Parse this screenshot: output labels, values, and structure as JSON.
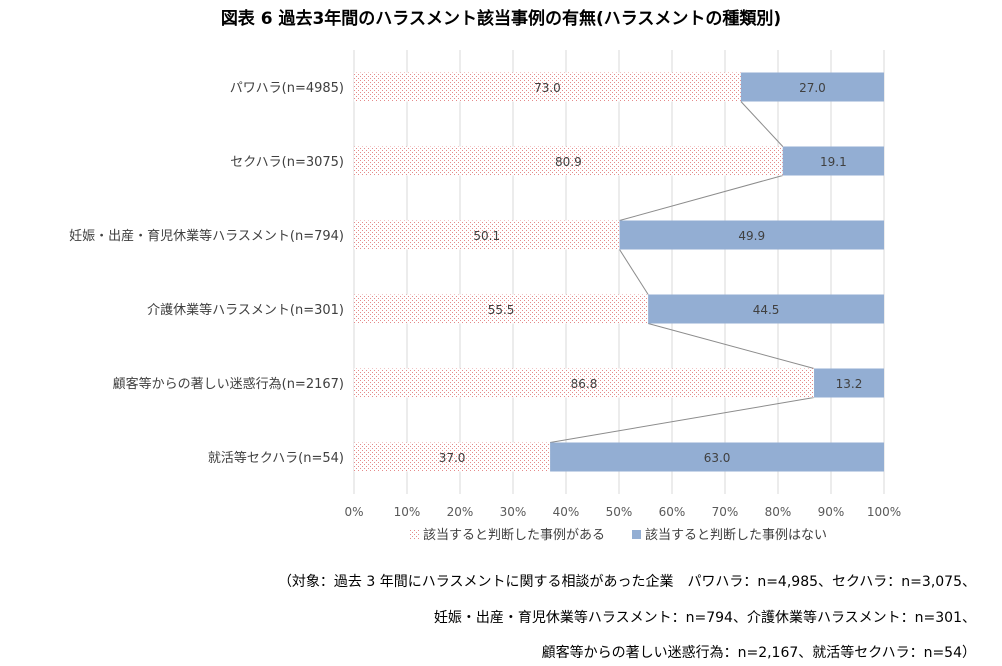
{
  "title": "図表 6 過去3年間のハラスメント該当事例の有無(ハラスメントの種類別)",
  "chart_data": {
    "type": "bar",
    "orientation": "horizontal",
    "stacked": "percent",
    "categories": [
      "パワハラ(n=4985)",
      "セクハラ(n=3075)",
      "妊娠・出産・育児休業等ハラスメント(n=794)",
      "介護休業等ハラスメント(n=301)",
      "顧客等からの著しい迷惑行為(n=2167)",
      "就活等セクハラ(n=54)"
    ],
    "series": [
      {
        "name": "該当すると判断した事例がある",
        "values": [
          73.0,
          80.9,
          50.1,
          55.5,
          86.8,
          37.0
        ],
        "color": "#f4b8b8",
        "pattern": "dotted"
      },
      {
        "name": "該当すると判断した事例はない",
        "values": [
          27.0,
          19.1,
          49.9,
          44.5,
          13.2,
          63.0
        ],
        "color": "#93aed3"
      }
    ],
    "value_labels": [
      [
        "73.0",
        "80.9",
        "50.1",
        "55.5",
        "86.8",
        "37.0"
      ],
      [
        "27.0",
        "19.1",
        "49.9",
        "44.5",
        "13.2",
        "63.0"
      ]
    ],
    "xlim": [
      0,
      100
    ],
    "x_ticks": [
      "0%",
      "10%",
      "20%",
      "30%",
      "40%",
      "50%",
      "60%",
      "70%",
      "80%",
      "90%",
      "100%"
    ],
    "series_lines": true,
    "grid": true,
    "legend_position": "bottom"
  },
  "notes": [
    "（対象：過去 3 年間にハラスメントに関する相談があった企業　パワハラ：n=4,985、セクハラ：n=3,075、",
    "妊娠・出産・育児休業等ハラスメント：n=794、介護休業等ハラスメント：n=301、",
    "顧客等からの著しい迷惑行為：n=2,167、就活等セクハラ：n=54）"
  ]
}
